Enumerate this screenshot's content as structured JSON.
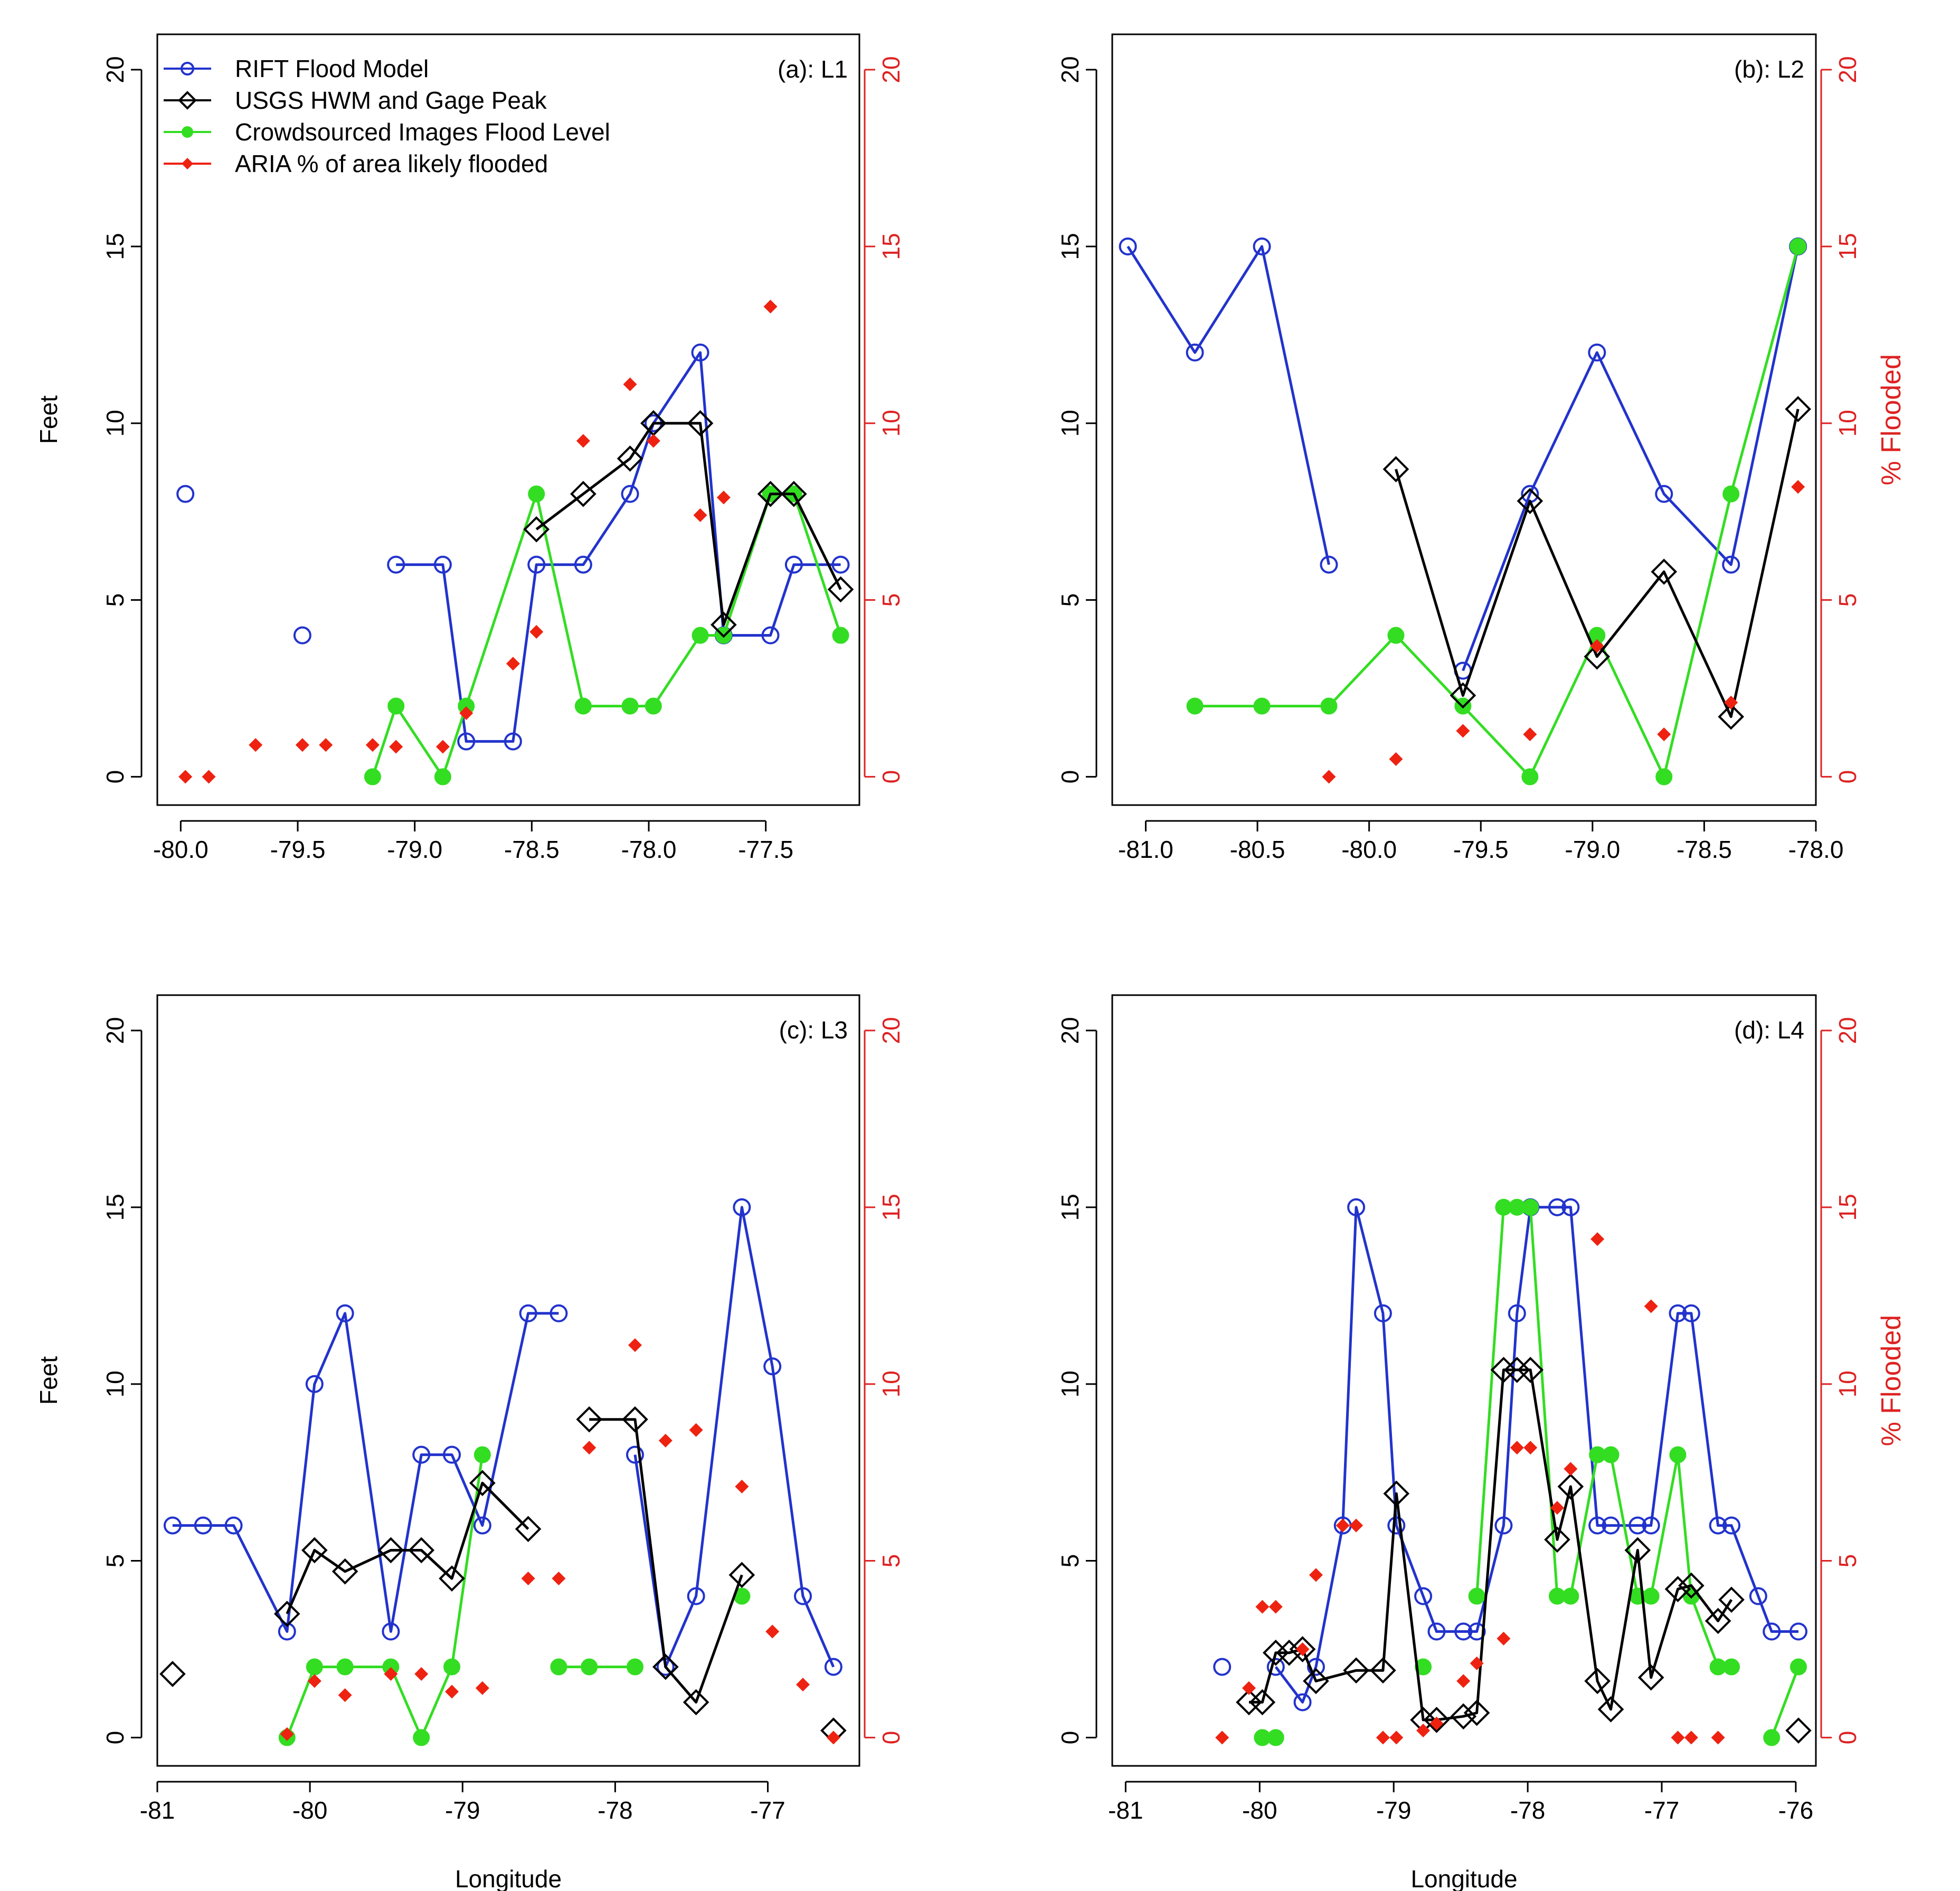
{
  "figure": {
    "shared_xlabel": "Longitude",
    "shared_ylabel_left": "Feet",
    "shared_ylabel_right": "% Flooded",
    "colors": {
      "rift": "#2233cc",
      "usgs": "#000000",
      "crowd": "#33dd22",
      "aria": "#ee2211",
      "right_axis": "#dd2222",
      "axis": "#000000"
    }
  },
  "chart_data": [
    {
      "type": "line",
      "title": "(a): L1",
      "xlabel": "",
      "ylabel": "Feet",
      "ylabel_right": "",
      "xlim": [
        -80.1,
        -77.1
      ],
      "xticks": [
        -80.0,
        -79.5,
        -79.0,
        -78.5,
        -78.0,
        -77.5
      ],
      "xtick_labels": [
        "-80.0",
        "-79.5",
        "-79.0",
        "-78.5",
        "-78.0",
        "-77.5"
      ],
      "ylim": [
        -0.8,
        21.0
      ],
      "yticks": [
        0,
        5,
        10,
        15,
        20
      ],
      "ytick_labels": [
        "0",
        "5",
        "10",
        "15",
        "20"
      ],
      "y2ticks": [
        0,
        5,
        10,
        15,
        20
      ],
      "y2tick_labels": [
        "0",
        "5",
        "10",
        "15",
        "20"
      ],
      "legend": {
        "position": "top-left",
        "entries": [
          "RIFT Flood Model",
          "USGS HWM and Gage Peak",
          "Crowdsourced Images Flood Level",
          "ARIA % of area likely flooded"
        ]
      },
      "series": [
        {
          "name": "RIFT Flood Model",
          "x": [
            -79.98,
            -79.48,
            -79.08,
            -78.88,
            -78.78,
            -78.58,
            -78.48,
            -78.28,
            -78.08,
            -77.98,
            -77.78,
            -77.68,
            -77.48,
            -77.38,
            -77.18
          ],
          "y": [
            8,
            4,
            6,
            6,
            1,
            1,
            6,
            6,
            8,
            10,
            12,
            4,
            4,
            6,
            6
          ],
          "segments": [
            [
              2,
              14
            ]
          ]
        },
        {
          "name": "USGS HWM and Gage Peak",
          "x": [
            -78.48,
            -78.28,
            -78.08,
            -77.98,
            -77.78,
            -77.68,
            -77.48,
            -77.38,
            -77.18
          ],
          "y": [
            7.0,
            8.0,
            9.0,
            10.0,
            10.0,
            4.3,
            8.0,
            8.0,
            5.3
          ],
          "segments": [
            [
              0,
              8
            ]
          ]
        },
        {
          "name": "Crowdsourced Images Flood Level",
          "x": [
            -79.18,
            -79.08,
            -78.88,
            -78.78,
            -78.48,
            -78.28,
            -78.08,
            -77.98,
            -77.78,
            -77.68,
            -77.48,
            -77.38,
            -77.18
          ],
          "y": [
            0,
            2,
            0,
            2,
            8,
            2,
            2,
            2,
            4,
            4,
            8,
            8,
            4
          ],
          "segments": [
            [
              0,
              12
            ]
          ]
        },
        {
          "name": "ARIA % of area likely flooded",
          "x": [
            -79.98,
            -79.88,
            -79.68,
            -79.48,
            -79.38,
            -79.18,
            -79.08,
            -78.88,
            -78.78,
            -78.58,
            -78.48,
            -78.28,
            -78.08,
            -77.98,
            -77.78,
            -77.68,
            -77.48
          ],
          "y": [
            0,
            0,
            0.9,
            0.9,
            0.9,
            0.9,
            0.85,
            0.85,
            1.8,
            3.2,
            4.1,
            9.5,
            11.1,
            9.5,
            7.4,
            7.9,
            13.3
          ]
        }
      ]
    },
    {
      "type": "line",
      "title": "(b): L2",
      "xlabel": "",
      "ylabel": "",
      "ylabel_right": "% Flooded",
      "xlim": [
        -81.15,
        -78.0
      ],
      "xticks": [
        -81.0,
        -80.5,
        -80.0,
        -79.5,
        -79.0,
        -78.5,
        -78.0
      ],
      "xtick_labels": [
        "-81.0",
        "-80.5",
        "-80.0",
        "-79.5",
        "-79.0",
        "-78.5",
        "-78.0"
      ],
      "ylim": [
        -0.8,
        21.0
      ],
      "yticks": [
        0,
        5,
        10,
        15,
        20
      ],
      "ytick_labels": [
        "0",
        "5",
        "10",
        "15",
        "20"
      ],
      "y2ticks": [
        0,
        5,
        10,
        15,
        20
      ],
      "y2tick_labels": [
        "0",
        "5",
        "10",
        "15",
        "20"
      ],
      "series": [
        {
          "name": "RIFT Flood Model",
          "x": [
            -81.08,
            -80.78,
            -80.48,
            -80.18,
            -79.58,
            -79.28,
            -78.98,
            -78.68,
            -78.38,
            -78.08
          ],
          "y": [
            15,
            12,
            15,
            6,
            3,
            8,
            12,
            8,
            6,
            15
          ],
          "segments": [
            [
              0,
              3
            ],
            [
              4,
              9
            ]
          ]
        },
        {
          "name": "USGS HWM and Gage Peak",
          "x": [
            -79.88,
            -79.58,
            -79.28,
            -78.98,
            -78.68,
            -78.38,
            -78.08
          ],
          "y": [
            8.7,
            2.3,
            7.8,
            3.4,
            5.8,
            1.7,
            10.4
          ],
          "segments": [
            [
              0,
              6
            ]
          ]
        },
        {
          "name": "Crowdsourced Images Flood Level",
          "x": [
            -80.78,
            -80.48,
            -80.18,
            -79.88,
            -79.58,
            -79.28,
            -78.98,
            -78.68,
            -78.38,
            -78.08
          ],
          "y": [
            2,
            2,
            2,
            4,
            2,
            0,
            4,
            0,
            8,
            15
          ],
          "segments": [
            [
              0,
              9
            ]
          ]
        },
        {
          "name": "ARIA % of area likely flooded",
          "x": [
            -80.18,
            -79.88,
            -79.58,
            -79.28,
            -78.98,
            -78.68,
            -78.38,
            -78.08
          ],
          "y": [
            0,
            0.5,
            1.3,
            1.2,
            3.7,
            1.2,
            2.1,
            8.2
          ]
        }
      ]
    },
    {
      "type": "line",
      "title": "(c): L3",
      "xlabel": "Longitude",
      "ylabel": "Feet",
      "ylabel_right": "",
      "xlim": [
        -81.0,
        -76.4
      ],
      "xticks": [
        -81,
        -80,
        -79,
        -78,
        -77
      ],
      "xtick_labels": [
        "-81",
        "-80",
        "-79",
        "-78",
        "-77"
      ],
      "ylim": [
        -0.8,
        21.0
      ],
      "yticks": [
        0,
        5,
        10,
        15,
        20
      ],
      "ytick_labels": [
        "0",
        "5",
        "10",
        "15",
        "20"
      ],
      "y2ticks": [
        0,
        5,
        10,
        15,
        20
      ],
      "y2tick_labels": [
        "0",
        "5",
        "10",
        "15",
        "20"
      ],
      "series": [
        {
          "name": "RIFT Flood Model",
          "x": [
            -80.9,
            -80.7,
            -80.5,
            -80.15,
            -79.97,
            -79.77,
            -79.47,
            -79.27,
            -79.07,
            -78.87,
            -78.57,
            -78.37,
            -77.87,
            -77.67,
            -77.47,
            -77.17,
            -76.97,
            -76.77,
            -76.57
          ],
          "y": [
            6,
            6,
            6,
            3,
            10,
            12,
            3,
            8,
            8,
            6,
            12,
            12,
            8,
            2,
            4,
            15,
            10.5,
            4,
            2
          ],
          "segments": [
            [
              0,
              11
            ],
            [
              12,
              18
            ]
          ]
        },
        {
          "name": "USGS HWM and Gage Peak",
          "x": [
            -80.9,
            -80.15,
            -79.97,
            -79.77,
            -79.47,
            -79.27,
            -79.07,
            -78.87,
            -78.57,
            -78.17,
            -77.87,
            -77.67,
            -77.47,
            -77.17,
            -76.57
          ],
          "y": [
            1.8,
            3.5,
            5.3,
            4.7,
            5.3,
            5.3,
            4.5,
            7.2,
            5.9,
            9.0,
            9.0,
            2.0,
            1.0,
            4.6,
            0.2
          ],
          "segments": [
            [
              1,
              8
            ],
            [
              9,
              13
            ]
          ]
        },
        {
          "name": "Crowdsourced Images Flood Level",
          "x": [
            -80.15,
            -79.97,
            -79.77,
            -79.47,
            -79.27,
            -79.07,
            -78.87,
            -78.37,
            -78.17,
            -77.87,
            -77.17
          ],
          "y": [
            0,
            2,
            2,
            2,
            0,
            2,
            8,
            2,
            2,
            2,
            4
          ],
          "segments": [
            [
              0,
              6
            ],
            [
              7,
              9
            ]
          ]
        },
        {
          "name": "ARIA % of area likely flooded",
          "x": [
            -80.15,
            -79.97,
            -79.77,
            -79.47,
            -79.27,
            -79.07,
            -78.87,
            -78.57,
            -78.37,
            -78.17,
            -77.87,
            -77.67,
            -77.47,
            -77.17,
            -76.97,
            -76.77,
            -76.57
          ],
          "y": [
            0.1,
            1.6,
            1.2,
            1.8,
            1.8,
            1.3,
            1.4,
            4.5,
            4.5,
            8.2,
            11.1,
            8.4,
            8.7,
            7.1,
            3.0,
            1.5,
            0
          ]
        }
      ]
    },
    {
      "type": "line",
      "title": "(d): L4",
      "xlabel": "Longitude",
      "ylabel": "",
      "ylabel_right": "% Flooded",
      "xlim": [
        -81.1,
        -75.85
      ],
      "xticks": [
        -81,
        -80,
        -79,
        -78,
        -77,
        -76
      ],
      "xtick_labels": [
        "-81",
        "-80",
        "-79",
        "-78",
        "-77",
        "-76"
      ],
      "ylim": [
        -0.8,
        21.0
      ],
      "yticks": [
        0,
        5,
        10,
        15,
        20
      ],
      "ytick_labels": [
        "0",
        "5",
        "10",
        "15",
        "20"
      ],
      "y2ticks": [
        0,
        5,
        10,
        15,
        20
      ],
      "y2tick_labels": [
        "0",
        "5",
        "10",
        "15",
        "20"
      ],
      "series": [
        {
          "name": "RIFT Flood Model",
          "x": [
            -80.28,
            -79.88,
            -79.68,
            -79.58,
            -79.38,
            -79.28,
            -79.08,
            -78.98,
            -78.78,
            -78.68,
            -78.48,
            -78.38,
            -78.18,
            -78.08,
            -77.98,
            -77.78,
            -77.68,
            -77.48,
            -77.38,
            -77.18,
            -77.08,
            -76.88,
            -76.78,
            -76.58,
            -76.48,
            -76.28,
            -76.18,
            -75.98
          ],
          "y": [
            2,
            2,
            1,
            2,
            6,
            15,
            12,
            6,
            4,
            3,
            3,
            3,
            6,
            12,
            15,
            15,
            15,
            6,
            6,
            6,
            6,
            12,
            12,
            6,
            6,
            4,
            3,
            3
          ],
          "segments": [
            [
              1,
              27
            ]
          ]
        },
        {
          "name": "USGS HWM and Gage Peak",
          "x": [
            -80.08,
            -79.98,
            -79.88,
            -79.78,
            -79.68,
            -79.58,
            -79.28,
            -79.08,
            -78.98,
            -78.78,
            -78.68,
            -78.48,
            -78.38,
            -78.18,
            -78.08,
            -77.98,
            -77.78,
            -77.68,
            -77.48,
            -77.38,
            -77.18,
            -77.08,
            -76.88,
            -76.78,
            -76.58,
            -76.48,
            -75.98
          ],
          "y": [
            1.0,
            1.0,
            2.4,
            2.4,
            2.5,
            1.6,
            1.9,
            1.9,
            6.9,
            0.5,
            0.5,
            0.6,
            0.7,
            10.4,
            10.4,
            10.4,
            5.6,
            7.1,
            1.6,
            0.8,
            5.3,
            1.7,
            4.2,
            4.3,
            3.3,
            3.9,
            0.2
          ],
          "segments": [
            [
              0,
              25
            ]
          ]
        },
        {
          "name": "Crowdsourced Images Flood Level",
          "x": [
            -79.98,
            -79.88,
            -78.78,
            -78.38,
            -78.18,
            -78.08,
            -77.98,
            -77.78,
            -77.68,
            -77.48,
            -77.38,
            -77.18,
            -77.08,
            -76.88,
            -76.78,
            -76.58,
            -76.48,
            -76.18,
            -75.98
          ],
          "y": [
            0,
            0,
            2,
            4,
            15,
            15,
            15,
            4,
            4,
            8,
            8,
            4,
            4,
            8,
            4,
            2,
            2,
            0,
            2
          ],
          "segments": [
            [
              3,
              16
            ],
            [
              17,
              18
            ]
          ]
        },
        {
          "name": "ARIA % of area likely flooded",
          "x": [
            -80.28,
            -80.08,
            -79.98,
            -79.88,
            -79.68,
            -79.58,
            -79.38,
            -79.28,
            -79.08,
            -78.98,
            -78.78,
            -78.68,
            -78.48,
            -78.38,
            -78.18,
            -78.08,
            -77.98,
            -77.78,
            -77.68,
            -77.48,
            -77.08,
            -76.88,
            -76.78,
            -76.58
          ],
          "y": [
            0,
            1.4,
            3.7,
            3.7,
            2.5,
            4.6,
            6.0,
            6.0,
            0,
            0,
            0.2,
            0.4,
            1.6,
            2.1,
            2.8,
            8.2,
            8.2,
            6.5,
            7.6,
            14.1,
            12.2,
            0,
            0,
            0
          ]
        }
      ]
    }
  ]
}
